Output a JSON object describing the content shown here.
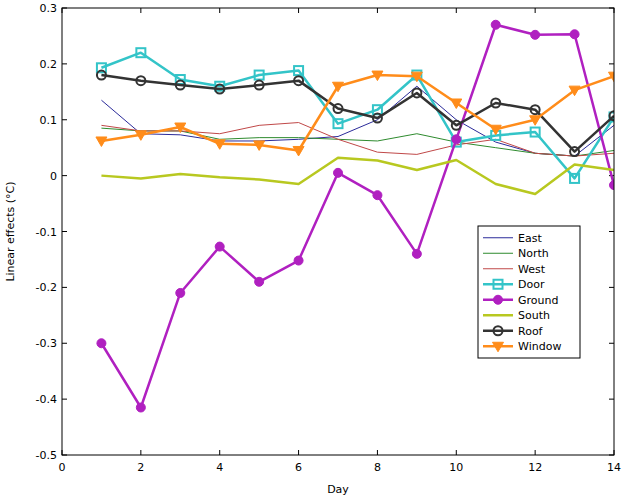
{
  "chart_data": {
    "type": "line",
    "x_label": "Day",
    "y_label": "Linear effects (°C)",
    "x": [
      1,
      2,
      3,
      4,
      5,
      6,
      7,
      8,
      9,
      10,
      11,
      12,
      13,
      14
    ],
    "xlim": [
      0,
      14
    ],
    "xticks": [
      0,
      2,
      4,
      6,
      8,
      10,
      12,
      14
    ],
    "ylim": [
      -0.5,
      0.3
    ],
    "yticks": [
      -0.5,
      -0.4,
      -0.3,
      -0.2,
      -0.1,
      0,
      0.1,
      0.2,
      0.3
    ],
    "grid": false,
    "legend": "lower right",
    "series": [
      {
        "name": "East",
        "color": "#2b2b9a",
        "marker": "none",
        "line_style": "thin",
        "values": [
          0.135,
          0.075,
          0.073,
          0.062,
          0.062,
          0.065,
          0.07,
          0.1,
          0.16,
          0.1,
          0.06,
          0.04,
          0.035,
          0.09
        ]
      },
      {
        "name": "North",
        "color": "#2e8b2e",
        "marker": "none",
        "line_style": "thin",
        "values": [
          0.085,
          0.08,
          0.08,
          0.065,
          0.068,
          0.068,
          0.065,
          0.062,
          0.075,
          0.06,
          0.05,
          0.04,
          0.035,
          0.045
        ]
      },
      {
        "name": "West",
        "color": "#c04848",
        "marker": "none",
        "line_style": "thin",
        "values": [
          0.09,
          0.08,
          0.08,
          0.075,
          0.09,
          0.095,
          0.065,
          0.042,
          0.038,
          0.055,
          0.065,
          0.04,
          0.035,
          0.04
        ]
      },
      {
        "name": "Door",
        "color": "#33c4c8",
        "marker": "square",
        "line_style": "thick",
        "values": [
          0.193,
          0.22,
          0.172,
          0.16,
          0.18,
          0.188,
          0.093,
          0.118,
          0.18,
          0.06,
          0.072,
          0.078,
          -0.005,
          0.105
        ]
      },
      {
        "name": "Ground",
        "color": "#b020c0",
        "marker": "circle",
        "line_style": "thick",
        "values": [
          -0.3,
          -0.415,
          -0.21,
          -0.127,
          -0.19,
          -0.152,
          0.005,
          -0.035,
          -0.14,
          0.065,
          0.27,
          0.252,
          0.253,
          -0.017
        ]
      },
      {
        "name": "South",
        "color": "#b8c820",
        "marker": "none",
        "line_style": "thick",
        "values": [
          0,
          -0.005,
          0.003,
          -0.003,
          -0.007,
          -0.015,
          0.032,
          0.027,
          0.01,
          0.028,
          -0.015,
          -0.033,
          0.02,
          0.01
        ]
      },
      {
        "name": "Roof",
        "color": "#333333",
        "marker": "circle-open",
        "line_style": "thick",
        "values": [
          0.18,
          0.17,
          0.162,
          0.155,
          0.162,
          0.17,
          0.12,
          0.103,
          0.148,
          0.09,
          0.13,
          0.118,
          0.043,
          0.107
        ]
      },
      {
        "name": "Window",
        "color": "#ff8c1a",
        "marker": "triangle-down",
        "line_style": "thick",
        "values": [
          0.062,
          0.073,
          0.087,
          0.057,
          0.055,
          0.045,
          0.16,
          0.18,
          0.178,
          0.13,
          0.083,
          0.1,
          0.153,
          0.178
        ]
      }
    ]
  }
}
